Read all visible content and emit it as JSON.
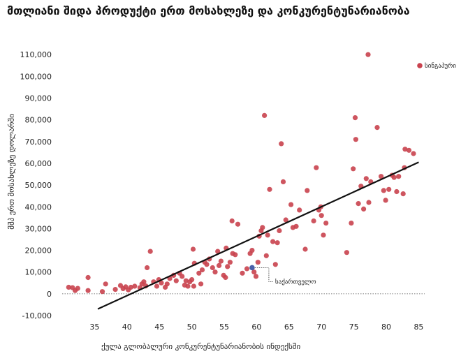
{
  "title": "მთლიანი შიდა პროდუქტი ერთ მოსახლეზე და კონკურენტუნარიანობა",
  "chart_data": {
    "type": "scatter",
    "title": "მთლიანი შიდა პროდუქტი ერთ მოსახლეზე და კონკურენტუნარიანობა",
    "xlabel": "ქულა გლობალური კონკურენტუნარიანობის ინდექსში",
    "ylabel": "მშპ ერთ მოსახლეზე დოლარში",
    "xlim": [
      30,
      87
    ],
    "ylim": [
      -10000,
      112000
    ],
    "x_ticks": [
      35,
      40,
      45,
      50,
      55,
      60,
      65,
      70,
      75,
      80,
      85
    ],
    "y_ticks": [
      -10000,
      0,
      10000,
      20000,
      30000,
      40000,
      50000,
      60000,
      70000,
      80000,
      90000,
      100000,
      110000
    ],
    "y_tick_labels": [
      "-10,000",
      "0",
      "10,000",
      "20,000",
      "30,000",
      "40,000",
      "50,000",
      "60,000",
      "70,000",
      "80,000",
      "90,000",
      "100,000",
      "110,000"
    ],
    "grid": false,
    "colors": {
      "points": "#c9424e",
      "highlight": "#4a5fa8",
      "trend": "#111111"
    },
    "trendline": {
      "x": [
        35.5,
        85
      ],
      "y": [
        -7000,
        60500
      ]
    },
    "legend": {
      "label": "სინგაპური",
      "position": "top-right"
    },
    "highlight": {
      "label": "საქართველო",
      "x": 59.3,
      "y": 12000
    },
    "series": [
      {
        "values": [
          [
            31,
            3000
          ],
          [
            31.6,
            2800
          ],
          [
            32,
            1500
          ],
          [
            32.4,
            2500
          ],
          [
            34,
            7500
          ],
          [
            34,
            1500
          ],
          [
            36.2,
            1000
          ],
          [
            36.7,
            4500
          ],
          [
            38.2,
            2000
          ],
          [
            39,
            3800
          ],
          [
            39.4,
            2400
          ],
          [
            39.8,
            3200
          ],
          [
            40.2,
            1800
          ],
          [
            40.6,
            3000
          ],
          [
            41.2,
            3500
          ],
          [
            42,
            2800
          ],
          [
            42.3,
            4500
          ],
          [
            42.6,
            5500
          ],
          [
            42.9,
            3600
          ],
          [
            43.1,
            12000
          ],
          [
            43.6,
            19500
          ],
          [
            44.1,
            5500
          ],
          [
            44.6,
            3500
          ],
          [
            44.9,
            6500
          ],
          [
            45.3,
            5000
          ],
          [
            45.9,
            3000
          ],
          [
            46.2,
            4500
          ],
          [
            46.6,
            7000
          ],
          [
            47.2,
            8500
          ],
          [
            47.6,
            6000
          ],
          [
            48.1,
            9500
          ],
          [
            48.5,
            8000
          ],
          [
            48.9,
            4000
          ],
          [
            49.1,
            6000
          ],
          [
            49.4,
            3500
          ],
          [
            49.7,
            5500
          ],
          [
            50,
            6500
          ],
          [
            50.3,
            3500
          ],
          [
            50.4,
            14000
          ],
          [
            50.2,
            20500
          ],
          [
            51.1,
            9500
          ],
          [
            51.4,
            4500
          ],
          [
            51.6,
            11000
          ],
          [
            52,
            14500
          ],
          [
            52.3,
            13500
          ],
          [
            52.7,
            16000
          ],
          [
            53.2,
            12000
          ],
          [
            53.6,
            10000
          ],
          [
            54,
            19500
          ],
          [
            54.2,
            13000
          ],
          [
            54.5,
            15000
          ],
          [
            54.9,
            8500
          ],
          [
            55.2,
            7500
          ],
          [
            55.5,
            12500
          ],
          [
            55.9,
            14500
          ],
          [
            56.3,
            18500
          ],
          [
            56.7,
            18000
          ],
          [
            55.3,
            21000
          ],
          [
            57.1,
            32000
          ],
          [
            56.2,
            33500
          ],
          [
            57.8,
            9500
          ],
          [
            58.5,
            11500
          ],
          [
            59,
            18500
          ],
          [
            59.3,
            20000
          ],
          [
            59.6,
            10000
          ],
          [
            59.9,
            8000
          ],
          [
            60.2,
            14500
          ],
          [
            60.4,
            26500
          ],
          [
            60.7,
            29000
          ],
          [
            60.9,
            30500
          ],
          [
            61.2,
            82000
          ],
          [
            61.5,
            17500
          ],
          [
            61.7,
            27000
          ],
          [
            62,
            48000
          ],
          [
            62.5,
            24000
          ],
          [
            62.9,
            13500
          ],
          [
            63.2,
            23500
          ],
          [
            63.5,
            29000
          ],
          [
            63.8,
            69000
          ],
          [
            64.1,
            51500
          ],
          [
            64.5,
            34000
          ],
          [
            65.3,
            41000
          ],
          [
            65.6,
            30500
          ],
          [
            66.1,
            31000
          ],
          [
            66.6,
            38500
          ],
          [
            67.5,
            20500
          ],
          [
            67.8,
            47500
          ],
          [
            68.8,
            33500
          ],
          [
            69.2,
            58000
          ],
          [
            69.6,
            38500
          ],
          [
            69.9,
            40000
          ],
          [
            70,
            36000
          ],
          [
            70.3,
            27000
          ],
          [
            70.7,
            32500
          ],
          [
            73.9,
            19000
          ],
          [
            74.6,
            32500
          ],
          [
            74.9,
            57500
          ],
          [
            75.3,
            71000
          ],
          [
            75.2,
            81000
          ],
          [
            75.7,
            41500
          ],
          [
            76.1,
            49500
          ],
          [
            76.5,
            39000
          ],
          [
            76.9,
            53000
          ],
          [
            77.3,
            42000
          ],
          [
            77.6,
            51500
          ],
          [
            77.2,
            110000
          ],
          [
            78.6,
            76500
          ],
          [
            79.2,
            54000
          ],
          [
            79.6,
            47500
          ],
          [
            79.9,
            43000
          ],
          [
            80.4,
            48000
          ],
          [
            80.9,
            54500
          ],
          [
            81.2,
            53500
          ],
          [
            81.6,
            47000
          ],
          [
            81.9,
            54000
          ],
          [
            82.6,
            46000
          ],
          [
            82.8,
            58000
          ],
          [
            82.9,
            66500
          ],
          [
            83.5,
            66000
          ],
          [
            84.2,
            64500
          ]
        ]
      }
    ]
  }
}
